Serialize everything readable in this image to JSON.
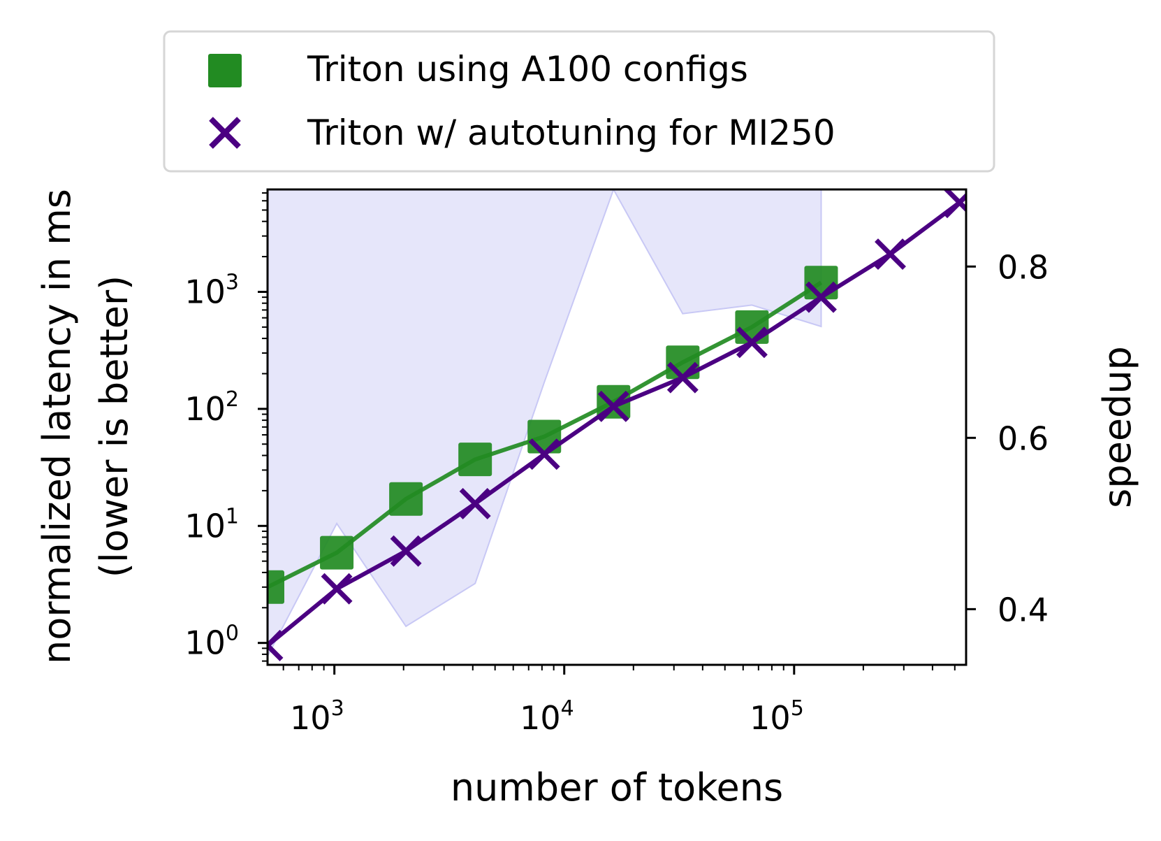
{
  "chart_data": {
    "type": "line",
    "xlabel": "number of tokens",
    "ylabel": "normalized latency in ms",
    "ylabel_line2": "(lower is better)",
    "y2label": "speedup",
    "xscale": "log",
    "yscale": "log",
    "xlim": [
      512,
      560000
    ],
    "ylim": [
      0.65,
      7500
    ],
    "y2lim": [
      0.335,
      0.89
    ],
    "x_ticks": [
      {
        "exp": "3",
        "base": "10",
        "value": 1000
      },
      {
        "exp": "4",
        "base": "10",
        "value": 10000
      },
      {
        "exp": "5",
        "base": "10",
        "value": 100000
      }
    ],
    "y_ticks": [
      {
        "exp": "0",
        "base": "10",
        "value": 1
      },
      {
        "exp": "1",
        "base": "10",
        "value": 10
      },
      {
        "exp": "2",
        "base": "10",
        "value": 100
      },
      {
        "exp": "3",
        "base": "10",
        "value": 1000
      }
    ],
    "y2_ticks": [
      {
        "label": "0.4",
        "value": 0.4
      },
      {
        "label": "0.6",
        "value": 0.6
      },
      {
        "label": "0.8",
        "value": 0.8
      }
    ],
    "series": [
      {
        "name": "Triton using A100 configs",
        "color": "#228b22",
        "marker": "square",
        "x": [
          512,
          1024,
          2048,
          4096,
          8192,
          16384,
          32768,
          65536,
          131072
        ],
        "values": [
          3.0,
          5.9,
          17,
          37,
          58,
          115,
          250,
          500,
          1200
        ]
      },
      {
        "name": "Triton w/ autotuning for MI250",
        "color": "#4b0082",
        "marker": "x",
        "x": [
          512,
          1024,
          2048,
          4096,
          8192,
          16384,
          32768,
          65536,
          131072,
          262144,
          524288
        ],
        "values": [
          0.95,
          2.9,
          6.1,
          15.5,
          41,
          105,
          185,
          370,
          900,
          2100,
          5800
        ]
      }
    ],
    "speedup_band": {
      "name": "speedup",
      "color": "#e6e6fa",
      "edge_color": "#c8c8f5",
      "x": [
        512,
        1024,
        2048,
        4096,
        8192,
        16384,
        32768,
        65536,
        131072
      ],
      "upper": [
        0.89,
        0.89,
        0.89,
        0.89,
        0.89,
        0.89,
        0.89,
        0.89,
        0.89
      ],
      "lower": [
        0.345,
        0.5,
        0.38,
        0.43,
        0.665,
        0.89,
        0.745,
        0.755,
        0.73
      ]
    },
    "legend_position": "top-center-outside"
  }
}
